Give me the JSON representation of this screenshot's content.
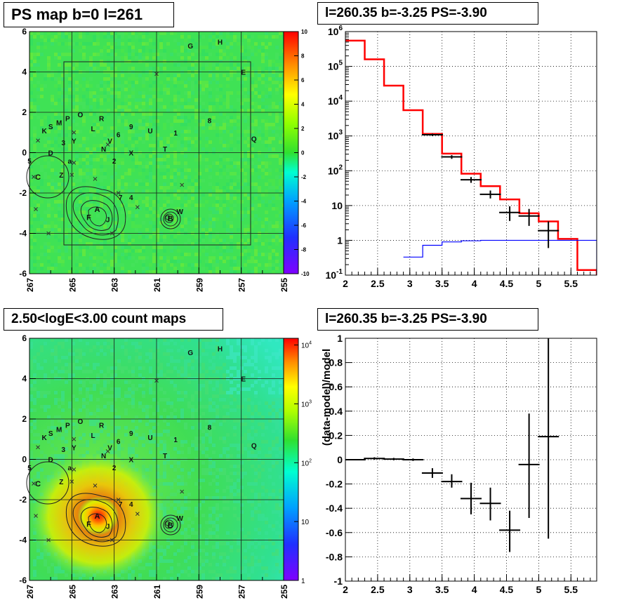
{
  "panels": {
    "psmap": {
      "title": "PS map b=0 l=261"
    },
    "spectrum": {
      "title": "l=260.35 b=-3.25 PS=-3.90"
    },
    "countmap": {
      "title": "2.50<logE<3.00 count maps"
    },
    "residual": {
      "title": "l=260.35 b=-3.25 PS=-3.90"
    }
  },
  "chart_data": [
    {
      "type": "heatmap",
      "panel": "psmap",
      "title": "PS map b=0 l=261",
      "xticks": [
        "267",
        "265",
        "263",
        "261",
        "259",
        "257",
        "255"
      ],
      "yticks": [
        "6",
        "4",
        "2",
        "0",
        "-2",
        "-4",
        "-6"
      ],
      "xlim": [
        267,
        255
      ],
      "ylim": [
        -6,
        6
      ],
      "colorbar": {
        "ticks": [
          "10",
          "8",
          "6",
          "4",
          "2",
          "0",
          "-2",
          "-4",
          "-6",
          "-8",
          "-10"
        ],
        "range": [
          -10,
          10
        ]
      },
      "grid": true,
      "sources": [
        {
          "label": "G",
          "l": 259.4,
          "b": 5.3
        },
        {
          "label": "H",
          "l": 258.0,
          "b": 5.5
        },
        {
          "label": "E",
          "l": 256.9,
          "b": 4.0
        },
        {
          "label": "O",
          "l": 264.6,
          "b": 1.9
        },
        {
          "label": "R",
          "l": 263.6,
          "b": 1.7
        },
        {
          "label": "8",
          "l": 258.5,
          "b": 1.6
        },
        {
          "label": "P",
          "l": 265.2,
          "b": 1.7
        },
        {
          "label": "M",
          "l": 265.6,
          "b": 1.5
        },
        {
          "label": "S",
          "l": 266.0,
          "b": 1.3
        },
        {
          "label": "K",
          "l": 266.3,
          "b": 1.1
        },
        {
          "label": "L",
          "l": 264.0,
          "b": 1.2
        },
        {
          "label": "9",
          "l": 262.2,
          "b": 1.3
        },
        {
          "label": "U",
          "l": 261.3,
          "b": 1.1
        },
        {
          "label": "1",
          "l": 260.1,
          "b": 1.0
        },
        {
          "label": "6",
          "l": 262.8,
          "b": 0.9
        },
        {
          "label": "V",
          "l": 263.2,
          "b": 0.6
        },
        {
          "label": "Y",
          "l": 264.9,
          "b": 0.6
        },
        {
          "label": "3",
          "l": 265.4,
          "b": 0.5
        },
        {
          "label": "Q",
          "l": 256.4,
          "b": 0.7
        },
        {
          "label": "N",
          "l": 263.5,
          "b": 0.2
        },
        {
          "label": "X",
          "l": 262.2,
          "b": 0.0
        },
        {
          "label": "T",
          "l": 260.6,
          "b": 0.2
        },
        {
          "label": "D",
          "l": 266.0,
          "b": 0.0
        },
        {
          "label": "a",
          "l": 265.1,
          "b": -0.4
        },
        {
          "label": "2",
          "l": 263.0,
          "b": -0.4
        },
        {
          "label": "5",
          "l": 267.0,
          "b": -0.4
        },
        {
          "label": "C",
          "l": 266.6,
          "b": -1.2
        },
        {
          "label": "Z",
          "l": 265.5,
          "b": -1.1
        },
        {
          "label": "7",
          "l": 262.7,
          "b": -2.2
        },
        {
          "label": "4",
          "l": 262.2,
          "b": -2.2
        },
        {
          "label": "A",
          "l": 263.8,
          "b": -2.8
        },
        {
          "label": "F",
          "l": 264.2,
          "b": -3.2
        },
        {
          "label": "J",
          "l": 263.3,
          "b": -3.3
        },
        {
          "label": "W",
          "l": 259.9,
          "b": -2.9
        },
        {
          "label": "B",
          "l": 260.35,
          "b": -3.25
        }
      ]
    },
    {
      "type": "line",
      "panel": "spectrum",
      "title": "l=260.35 b=-3.25 PS=-3.90",
      "xlabel": "",
      "ylabel": "",
      "xlim": [
        2,
        5.9
      ],
      "ylim": [
        0.1,
        1000000
      ],
      "yscale": "log",
      "xticks": [
        "2",
        "2.5",
        "3",
        "3.5",
        "4",
        "4.5",
        "5",
        "5.5"
      ],
      "grid": true,
      "series": [
        {
          "name": "",
          "style": "step",
          "color": "#ff0000",
          "edges": [
            2.0,
            2.3,
            2.6,
            2.9,
            3.2,
            3.5,
            3.8,
            4.1,
            4.4,
            4.7,
            5.0,
            5.3,
            5.6,
            5.9
          ],
          "values": [
            550000,
            160000,
            28000,
            5500,
            1150,
            310,
            82,
            36,
            15,
            6,
            3.5,
            1.1,
            0.14
          ]
        },
        {
          "name": "",
          "style": "step",
          "color": "#0000ff",
          "edges": [
            2.9,
            3.2,
            3.5,
            3.8,
            4.1,
            4.4,
            4.7,
            5.0,
            5.3,
            5.6,
            5.9
          ],
          "values": [
            0.33,
            0.72,
            0.9,
            0.97,
            1.0,
            1.0,
            1.0,
            1.0,
            1.0,
            1.0
          ]
        },
        {
          "name": "",
          "style": "errorbars",
          "color": "#000000",
          "points": [
            {
              "x": 3.35,
              "y": 1080,
              "ylo": 1000,
              "yhi": 1160
            },
            {
              "x": 3.65,
              "y": 250,
              "ylo": 220,
              "yhi": 280
            },
            {
              "x": 3.95,
              "y": 55,
              "ylo": 45,
              "yhi": 66
            },
            {
              "x": 4.25,
              "y": 21,
              "ylo": 16,
              "yhi": 27
            },
            {
              "x": 4.55,
              "y": 6.3,
              "ylo": 3.6,
              "yhi": 9.5
            },
            {
              "x": 4.85,
              "y": 5.0,
              "ylo": 2.6,
              "yhi": 8.0
            },
            {
              "x": 5.15,
              "y": 1.9,
              "ylo": 0.6,
              "yhi": 3.5
            }
          ]
        }
      ]
    },
    {
      "type": "heatmap",
      "panel": "countmap",
      "title": "2.50<logE<3.00 count maps",
      "xticks": [
        "267",
        "265",
        "263",
        "261",
        "259",
        "257",
        "255"
      ],
      "yticks": [
        "6",
        "4",
        "2",
        "0",
        "-2",
        "-4",
        "-6"
      ],
      "xlim": [
        267,
        255
      ],
      "ylim": [
        -6,
        6
      ],
      "colorbar": {
        "ticks": [
          "10^4",
          "10^3",
          "10^2",
          "10",
          "1"
        ],
        "scale": "log",
        "range": [
          1,
          13000
        ]
      },
      "peak": {
        "l": 263.9,
        "b": -2.9
      },
      "grid": true
    },
    {
      "type": "scatter",
      "panel": "residual",
      "title": "l=260.35 b=-3.25 PS=-3.90",
      "xlabel": "",
      "ylabel": "(data-model)/model",
      "xlim": [
        2,
        5.9
      ],
      "ylim": [
        -1,
        1
      ],
      "xticks": [
        "2",
        "2.5",
        "3",
        "3.5",
        "4",
        "4.5",
        "5",
        "5.5"
      ],
      "yticks": [
        "-1",
        "-0.8",
        "-0.6",
        "-0.4",
        "-0.2",
        "0",
        "0.2",
        "0.4",
        "0.6",
        "0.8",
        "1"
      ],
      "grid": true,
      "points": [
        {
          "x": 2.15,
          "y": 0.0,
          "ylo": -0.005,
          "yhi": 0.005
        },
        {
          "x": 2.45,
          "y": 0.01,
          "ylo": 0.0,
          "yhi": 0.02
        },
        {
          "x": 2.75,
          "y": 0.005,
          "ylo": -0.005,
          "yhi": 0.015
        },
        {
          "x": 3.05,
          "y": 0.0,
          "ylo": -0.01,
          "yhi": 0.01
        },
        {
          "x": 3.35,
          "y": -0.11,
          "ylo": -0.15,
          "yhi": -0.07
        },
        {
          "x": 3.65,
          "y": -0.18,
          "ylo": -0.23,
          "yhi": -0.12
        },
        {
          "x": 3.95,
          "y": -0.32,
          "ylo": -0.45,
          "yhi": -0.19
        },
        {
          "x": 4.25,
          "y": -0.36,
          "ylo": -0.5,
          "yhi": -0.23
        },
        {
          "x": 4.55,
          "y": -0.58,
          "ylo": -0.76,
          "yhi": -0.42
        },
        {
          "x": 4.85,
          "y": -0.04,
          "ylo": -0.48,
          "yhi": 0.38
        },
        {
          "x": 5.15,
          "y": 0.19,
          "ylo": -0.65,
          "yhi": 1.0
        }
      ]
    }
  ]
}
